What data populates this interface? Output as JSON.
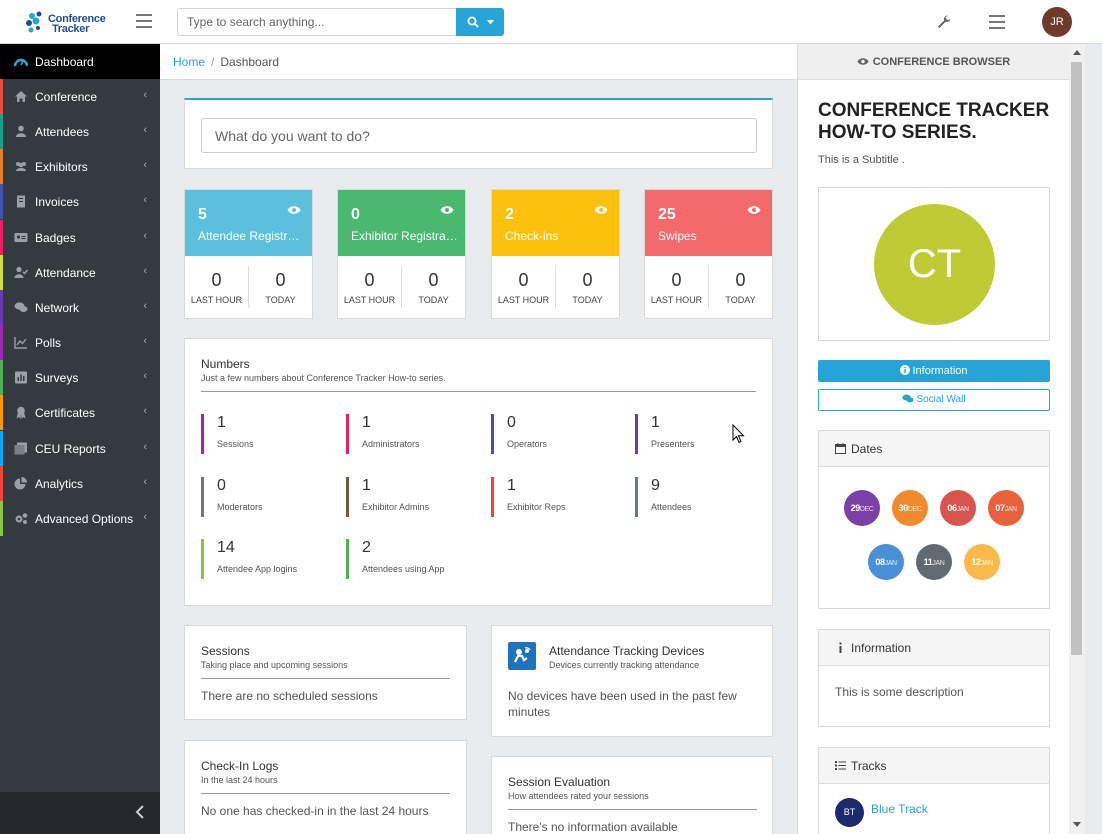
{
  "app": {
    "logo_line1": "Conference",
    "logo_line2": "Tracker",
    "accent_color": "#26a4d8"
  },
  "header": {
    "search_placeholder": "Type to search anything...",
    "user_initials": "JR",
    "icons": [
      "menu-icon",
      "search-icon",
      "caret-down-icon",
      "wrench-icon",
      "hamburger-icon"
    ]
  },
  "sidebar": {
    "items": [
      {
        "label": "Dashboard",
        "icon": "dashboard-icon",
        "color": "#26a4d8"
      },
      {
        "label": "Conference",
        "icon": "home-icon",
        "color": "#e74c3c"
      },
      {
        "label": "Attendees",
        "icon": "person-badge-icon",
        "color": "#16a085"
      },
      {
        "label": "Exhibitors",
        "icon": "users-icon",
        "color": "#e67e22"
      },
      {
        "label": "Invoices",
        "icon": "invoice-icon",
        "color": "#3f51b5"
      },
      {
        "label": "Badges",
        "icon": "id-card-icon",
        "color": "#e91e63"
      },
      {
        "label": "Attendance",
        "icon": "user-check-icon",
        "color": "#cddc39"
      },
      {
        "label": "Network",
        "icon": "chat-icon",
        "color": "#673ab7"
      },
      {
        "label": "Polls",
        "icon": "chart-icon",
        "color": "#9c27b0"
      },
      {
        "label": "Surveys",
        "icon": "survey-icon",
        "color": "#4caf50"
      },
      {
        "label": "Certificates",
        "icon": "award-icon",
        "color": "#ff9800"
      },
      {
        "label": "CEU Reports",
        "icon": "report-icon",
        "color": "#03a9f4"
      },
      {
        "label": "Analytics",
        "icon": "pie-icon",
        "color": "#f44336"
      },
      {
        "label": "Advanced Options",
        "icon": "cogs-icon",
        "color": "#8bc34a"
      }
    ]
  },
  "breadcrumb": {
    "home": "Home",
    "separator": "/",
    "current": "Dashboard"
  },
  "todo": {
    "placeholder": "What do you want to do?"
  },
  "stats": [
    {
      "value": "5",
      "title": "Attendee Registrati...",
      "color": "#5bc0de",
      "last_hour": "0",
      "today": "0"
    },
    {
      "value": "0",
      "title": "Exhibitor Registrati...",
      "color": "#48b96f",
      "last_hour": "0",
      "today": "0"
    },
    {
      "value": "2",
      "title": "Check-ins",
      "color": "#fcc10c",
      "last_hour": "0",
      "today": "0"
    },
    {
      "value": "25",
      "title": "Swipes",
      "color": "#f36a6a",
      "last_hour": "0",
      "today": "0"
    }
  ],
  "stat_labels": {
    "last_hour": "LAST HOUR",
    "today": "TODAY"
  },
  "numbers": {
    "title": "Numbers",
    "subtitle": "Just a few numbers about Conference Tracker How-to series.",
    "items": [
      {
        "value": "1",
        "label": "Sessions",
        "color": "#9c27b0"
      },
      {
        "value": "1",
        "label": "Administrators",
        "color": "#e91e63"
      },
      {
        "value": "0",
        "label": "Operators",
        "color": "#3f51b5"
      },
      {
        "value": "1",
        "label": "Presenters",
        "color": "#673ab7"
      },
      {
        "value": "0",
        "label": "Moderators",
        "color": "#757575"
      },
      {
        "value": "1",
        "label": "Exhibitor Admins",
        "color": "#795548"
      },
      {
        "value": "1",
        "label": "Exhibitor Reps",
        "color": "#f44336"
      },
      {
        "value": "9",
        "label": "Attendees",
        "color": "#607d8b"
      },
      {
        "value": "14",
        "label": "Attendee App logins",
        "color": "#8bc34a"
      },
      {
        "value": "2",
        "label": "Attendees using App",
        "color": "#4caf50"
      }
    ]
  },
  "sessions_card": {
    "title": "Sessions",
    "subtitle": "Taking place and upcoming sessions",
    "empty": "There are no scheduled sessions"
  },
  "devices_card": {
    "title": "Attendance Tracking Devices",
    "subtitle": "Devices currently tracking attendance",
    "empty": "No devices have been used in the past few minutes"
  },
  "checkin_card": {
    "title": "Check-In Logs",
    "subtitle": "In the last 24 hours",
    "empty": "No one has checked-in in the last 24 hours"
  },
  "evaluation_card": {
    "title": "Session Evaluation",
    "subtitle": "How attendees rated your sessions",
    "empty": "There's no information available"
  },
  "browser": {
    "header": "CONFERENCE BROWSER",
    "title": "CONFERENCE TRACKER HOW-TO SERIES.",
    "subtitle": "This is a Subtitle .",
    "logo_initials": "CT",
    "logo_color": "#bfcb35",
    "info_button": "Information",
    "social_button": "Social Wall",
    "dates_title": "Dates",
    "dates": [
      {
        "day": "29",
        "month": "DEC",
        "color": "#7b3fa8"
      },
      {
        "day": "30",
        "month": "DEC",
        "color": "#f08a2c"
      },
      {
        "day": "06",
        "month": "JAN",
        "color": "#d9534f"
      },
      {
        "day": "07",
        "month": "JAN",
        "color": "#e8603c"
      },
      {
        "day": "08",
        "month": "JAN",
        "color": "#4a90d9"
      },
      {
        "day": "11",
        "month": "JAN",
        "color": "#616a70"
      },
      {
        "day": "12",
        "month": "JAN",
        "color": "#fbb94a"
      }
    ],
    "info_title": "Information",
    "info_text": "This is some description",
    "tracks_title": "Tracks",
    "tracks": [
      {
        "initials": "BT",
        "name": "Blue Track"
      }
    ]
  }
}
